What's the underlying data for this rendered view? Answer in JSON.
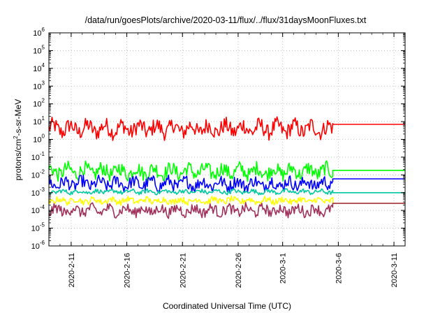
{
  "chart_data": {
    "type": "line",
    "title": "/data/run/goesPlots/archive/2020-03-11/flux/../flux/31daysMoonFluxes.txt",
    "xlabel": "Coordinated Universal Time (UTC)",
    "ylabel": {
      "main": "protons/cm",
      "sup": "2",
      "rest": "-s-sr-MeV"
    },
    "yscale": "log",
    "ylim_exp": [
      -6,
      6
    ],
    "y_ticks": [
      {
        "base": "10",
        "exp": "-6"
      },
      {
        "base": "10",
        "exp": "-5"
      },
      {
        "base": "10",
        "exp": "-4"
      },
      {
        "base": "10",
        "exp": "-3"
      },
      {
        "base": "10",
        "exp": "-2"
      },
      {
        "base": "10",
        "exp": "-1"
      },
      {
        "base": "10",
        "exp": "0"
      },
      {
        "base": "10",
        "exp": "1"
      },
      {
        "base": "10",
        "exp": "2"
      },
      {
        "base": "10",
        "exp": "3"
      },
      {
        "base": "10",
        "exp": "4"
      },
      {
        "base": "10",
        "exp": "5"
      },
      {
        "base": "10",
        "exp": "6"
      }
    ],
    "xlim": [
      "2020-02-09",
      "2020-03-12"
    ],
    "x_ticks": [
      "2020-2-11",
      "2020-2-16",
      "2020-2-21",
      "2020-2-26",
      "2020-3-1",
      "2020-3-6",
      "2020-3-11"
    ],
    "grid": true,
    "data_end": "2020-03-05T12:00",
    "series": [
      {
        "color": "#ff0000",
        "center_log10": 0.6,
        "spread": 0.45,
        "final_value": 7.0
      },
      {
        "color": "#00ff00",
        "center_log10": -1.8,
        "spread": 0.4,
        "final_value": 0.018
      },
      {
        "color": "#0000ff",
        "center_log10": -2.5,
        "spread": 0.35,
        "final_value": 0.006
      },
      {
        "color": "#00c8a0",
        "center_log10": -2.95,
        "spread": 0.12,
        "final_value": 0.001
      },
      {
        "color": "#ffff00",
        "center_log10": -3.45,
        "spread": 0.18,
        "final_value": 0.00025
      },
      {
        "color": "#a0305a",
        "center_log10": -4.0,
        "spread": 0.3,
        "final_value": 0.00025
      }
    ]
  }
}
